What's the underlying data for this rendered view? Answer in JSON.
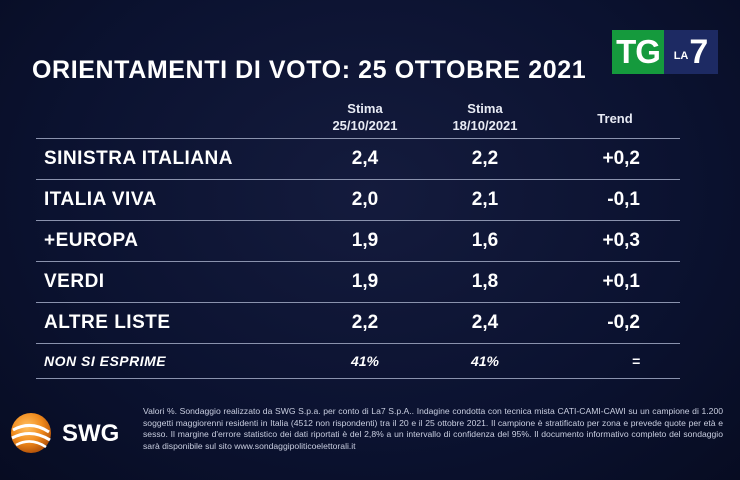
{
  "brand": {
    "tg": "TG",
    "la": "LA",
    "seven": "7",
    "swg": "SWG"
  },
  "title": "ORIENTAMENTI DI VOTO: 25 OTTOBRE 2021",
  "headers": {
    "col1_line1": "Stima",
    "col1_line2": "25/10/2021",
    "col2_line1": "Stima",
    "col2_line2": "18/10/2021",
    "col3": "Trend"
  },
  "chart_data": {
    "type": "table",
    "title": "ORIENTAMENTI DI VOTO: 25 OTTOBRE 2021",
    "columns": [
      "Stima 25/10/2021",
      "Stima 18/10/2021",
      "Trend"
    ],
    "rows": [
      {
        "party": "SINISTRA ITALIANA",
        "v1": "2,4",
        "v2": "2,2",
        "trend": "+0,2"
      },
      {
        "party": "ITALIA VIVA",
        "v1": "2,0",
        "v2": "2,1",
        "trend": "-0,1"
      },
      {
        "party": "+EUROPA",
        "v1": "1,9",
        "v2": "1,6",
        "trend": "+0,3"
      },
      {
        "party": "VERDI",
        "v1": "1,9",
        "v2": "1,8",
        "trend": "+0,1"
      },
      {
        "party": "ALTRE LISTE",
        "v1": "2,2",
        "v2": "2,4",
        "trend": "-0,2"
      },
      {
        "party": "NON SI ESPRIME",
        "v1": "41%",
        "v2": "41%",
        "trend": "="
      }
    ]
  },
  "footnote": "Valori %. Sondaggio realizzato da SWG S.p.a. per conto di La7 S.p.A.. Indagine condotta con tecnica mista CATI-CAMI-CAWI su un campione di 1.200 soggetti maggiorenni residenti in Italia (4512 non rispondenti) tra il 20 e il 25 ottobre 2021. Il campione è stratificato per zona e prevede quote per età e sesso. Il margine d'errore statistico dei dati riportati è del 2,8% a un intervallo di confidenza del 95%. Il documento informativo completo del sondaggio sarà disponibile sul sito www.sondaggipoliticoelettorali.it",
  "colors": {
    "background": "#0b1230",
    "tg_green": "#159a3d",
    "la7_blue": "#1d2a63",
    "swg_orange": "#f08a1c"
  }
}
